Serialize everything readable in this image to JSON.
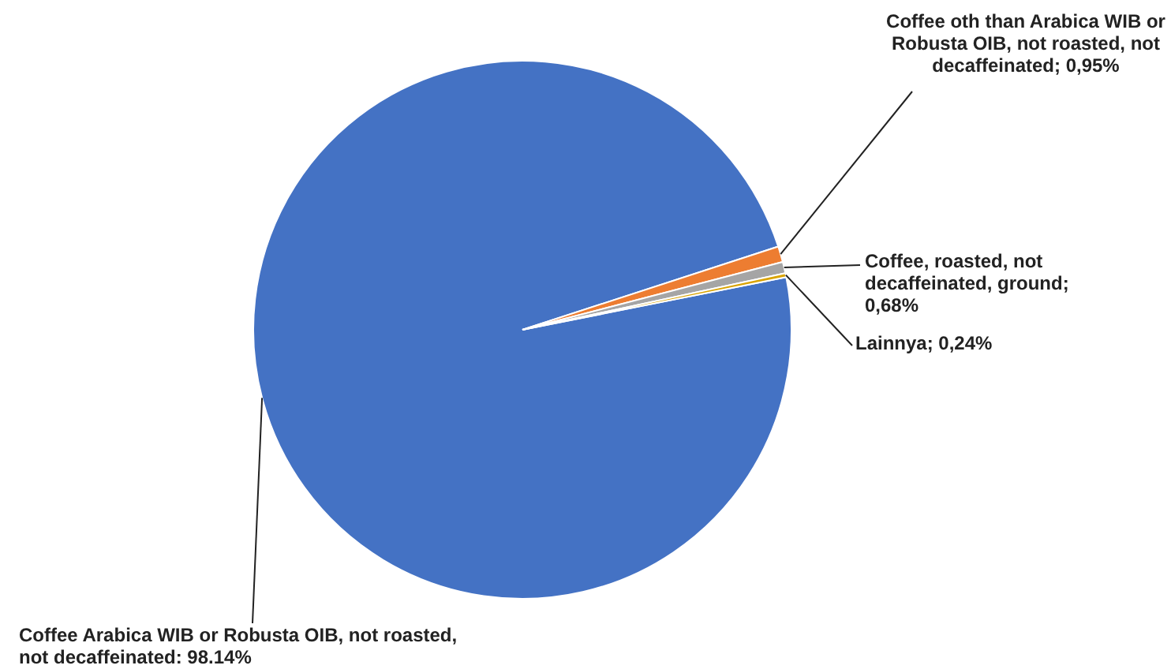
{
  "chart_data": {
    "type": "pie",
    "categories": [
      "Coffee Arabica WIB or Robusta OIB, not roasted, not decaffeinated",
      "Coffee oth than Arabica WIB or Robusta OIB, not roasted, not decaffeinated",
      "Coffee, roasted, not decaffeinated, ground",
      "Lainnya"
    ],
    "values": [
      98.14,
      0.95,
      0.68,
      0.24
    ],
    "colors": [
      "#4472c4",
      "#ed7d31",
      "#a5a5a5",
      "#d9a300"
    ],
    "value_labels": [
      ": 98.14%",
      "; 0,95%",
      "; 0,68%",
      "; 0,24%"
    ],
    "legend": false
  }
}
